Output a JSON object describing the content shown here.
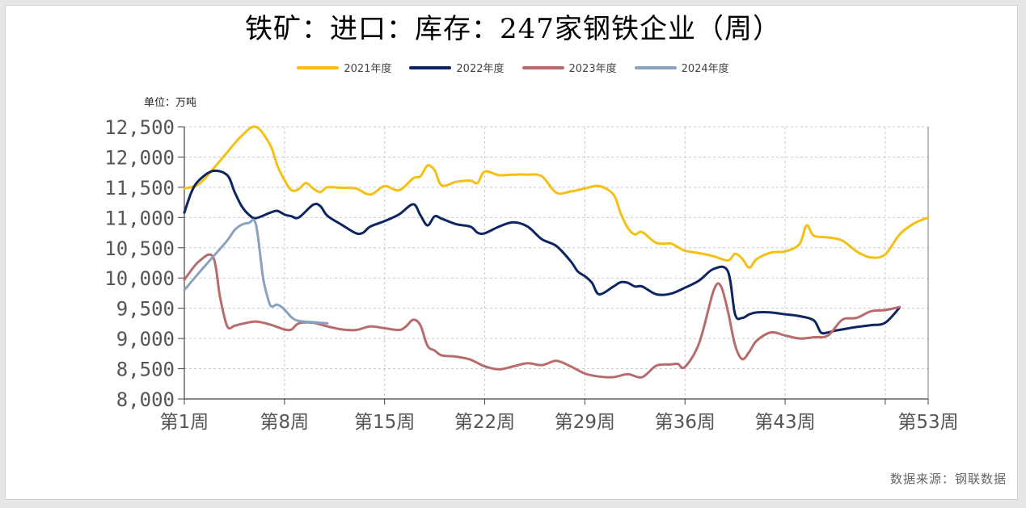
{
  "title": "铁矿：进口：库存：247家钢铁企业（周）",
  "unit_label": "单位：万吨",
  "source_label": "数据来源：钢联数据",
  "chart_data": {
    "type": "line",
    "title": "铁矿：进口：库存：247家钢铁企业（周）",
    "unit": "万吨",
    "ylim": [
      8000,
      12500
    ],
    "y_ticks": [
      8000,
      8500,
      9000,
      9500,
      10000,
      10500,
      11000,
      11500,
      12000,
      12500
    ],
    "y_tick_labels": [
      "8,000",
      "8,500",
      "9,000",
      "9,500",
      "10,000",
      "10,500",
      "11,000",
      "11,500",
      "12,000",
      "12,500"
    ],
    "xlim": [
      1,
      53
    ],
    "x_ticks": [
      1,
      8,
      15,
      22,
      29,
      36,
      43,
      50,
      53
    ],
    "x_tick_labels": [
      "第1周",
      "第8周",
      "第15周",
      "第22周",
      "第29周",
      "第36周",
      "第43周",
      "",
      "第53周"
    ],
    "grid": true,
    "legend_position": "top-center",
    "series": [
      {
        "name": "2021年度",
        "color": "#f5c014",
        "x": [
          1,
          2,
          3,
          4,
          5,
          6,
          7,
          7.5,
          8,
          8.5,
          9,
          9.5,
          10,
          10.5,
          11,
          12,
          13,
          14,
          15,
          16,
          17,
          17.5,
          18,
          18.5,
          19,
          20,
          21,
          21.5,
          22,
          23,
          24,
          25,
          26,
          27,
          28,
          29,
          30,
          31,
          31.5,
          32,
          32.5,
          33,
          34,
          35,
          35.5,
          36,
          37,
          38,
          39,
          39.5,
          40,
          40.5,
          41,
          42,
          43,
          44,
          44.5,
          45,
          46,
          47,
          48,
          49,
          50,
          51,
          52,
          53
        ],
        "values": [
          11480,
          11550,
          11800,
          12080,
          12350,
          12500,
          12200,
          11860,
          11620,
          11450,
          11470,
          11570,
          11480,
          11420,
          11500,
          11490,
          11480,
          11380,
          11520,
          11450,
          11650,
          11680,
          11860,
          11780,
          11530,
          11590,
          11610,
          11570,
          11760,
          11700,
          11710,
          11710,
          11680,
          11410,
          11430,
          11480,
          11520,
          11380,
          11070,
          10830,
          10720,
          10760,
          10580,
          10570,
          10510,
          10450,
          10410,
          10360,
          10290,
          10400,
          10320,
          10170,
          10310,
          10420,
          10440,
          10560,
          10870,
          10700,
          10670,
          10620,
          10440,
          10340,
          10390,
          10720,
          10900,
          11000
        ]
      },
      {
        "name": "2022年度",
        "color": "#0d2560",
        "x": [
          1,
          1.5,
          2,
          3,
          4,
          4.5,
          5,
          5.5,
          6,
          7,
          7.5,
          8,
          8.5,
          9,
          10,
          10.5,
          11,
          12,
          13,
          13.5,
          14,
          15,
          16,
          17,
          17.5,
          18,
          18.5,
          19,
          20,
          21,
          21.5,
          22,
          23,
          24,
          25,
          26,
          27,
          28,
          28.5,
          29,
          29.5,
          30,
          31,
          31.5,
          32,
          32.5,
          33,
          34,
          35,
          36,
          37,
          38,
          39,
          39.5,
          40,
          40.5,
          41,
          42,
          43,
          44,
          45,
          45.5,
          46,
          46.5,
          47,
          48,
          49,
          50,
          51
        ],
        "values": [
          11080,
          11420,
          11610,
          11770,
          11700,
          11430,
          11190,
          11050,
          10990,
          11080,
          11110,
          11050,
          11020,
          11000,
          11210,
          11190,
          11030,
          10880,
          10740,
          10750,
          10850,
          10940,
          11050,
          11220,
          11040,
          10870,
          11020,
          10980,
          10890,
          10850,
          10750,
          10740,
          10850,
          10920,
          10850,
          10640,
          10530,
          10280,
          10110,
          10030,
          9920,
          9730,
          9860,
          9930,
          9920,
          9860,
          9860,
          9730,
          9740,
          9840,
          9960,
          10150,
          10110,
          9400,
          9340,
          9400,
          9430,
          9430,
          9400,
          9370,
          9300,
          9100,
          9100,
          9130,
          9150,
          9190,
          9220,
          9260,
          9510
        ]
      },
      {
        "name": "2023年度",
        "color": "#b86b6b",
        "x": [
          1,
          2,
          3,
          3.5,
          4,
          4.5,
          5,
          6,
          7,
          8,
          8.5,
          9,
          10,
          11,
          12,
          13,
          14,
          15,
          16,
          16.5,
          17,
          17.5,
          18,
          18.5,
          19,
          20,
          21,
          22,
          23,
          24,
          25,
          26,
          27,
          28,
          29,
          30,
          31,
          32,
          33,
          34,
          35,
          35.5,
          36,
          37,
          38,
          38.5,
          39,
          39.5,
          40,
          40.5,
          41,
          42,
          43,
          44,
          45,
          46,
          47,
          48,
          49,
          50,
          51
        ],
        "values": [
          9970,
          10270,
          10350,
          9680,
          9200,
          9210,
          9240,
          9280,
          9230,
          9150,
          9150,
          9250,
          9260,
          9200,
          9150,
          9140,
          9200,
          9170,
          9140,
          9200,
          9310,
          9220,
          8880,
          8800,
          8720,
          8700,
          8650,
          8540,
          8490,
          8540,
          8590,
          8560,
          8630,
          8540,
          8420,
          8370,
          8360,
          8410,
          8360,
          8550,
          8570,
          8580,
          8530,
          8930,
          9790,
          9870,
          9450,
          8890,
          8660,
          8780,
          8960,
          9100,
          9050,
          9000,
          9020,
          9050,
          9310,
          9340,
          9450,
          9470,
          9520
        ]
      },
      {
        "name": "2024年度",
        "color": "#8aa1bf",
        "x": [
          1,
          2,
          3,
          4,
          4.5,
          5,
          5.5,
          6,
          6.5,
          6.8,
          7,
          7.2,
          7.5,
          8,
          8.5,
          9,
          10,
          11
        ],
        "values": [
          9800,
          10080,
          10350,
          10620,
          10790,
          10880,
          10910,
          10890,
          10010,
          9700,
          9550,
          9530,
          9560,
          9480,
          9350,
          9290,
          9270,
          9250
        ]
      }
    ]
  }
}
